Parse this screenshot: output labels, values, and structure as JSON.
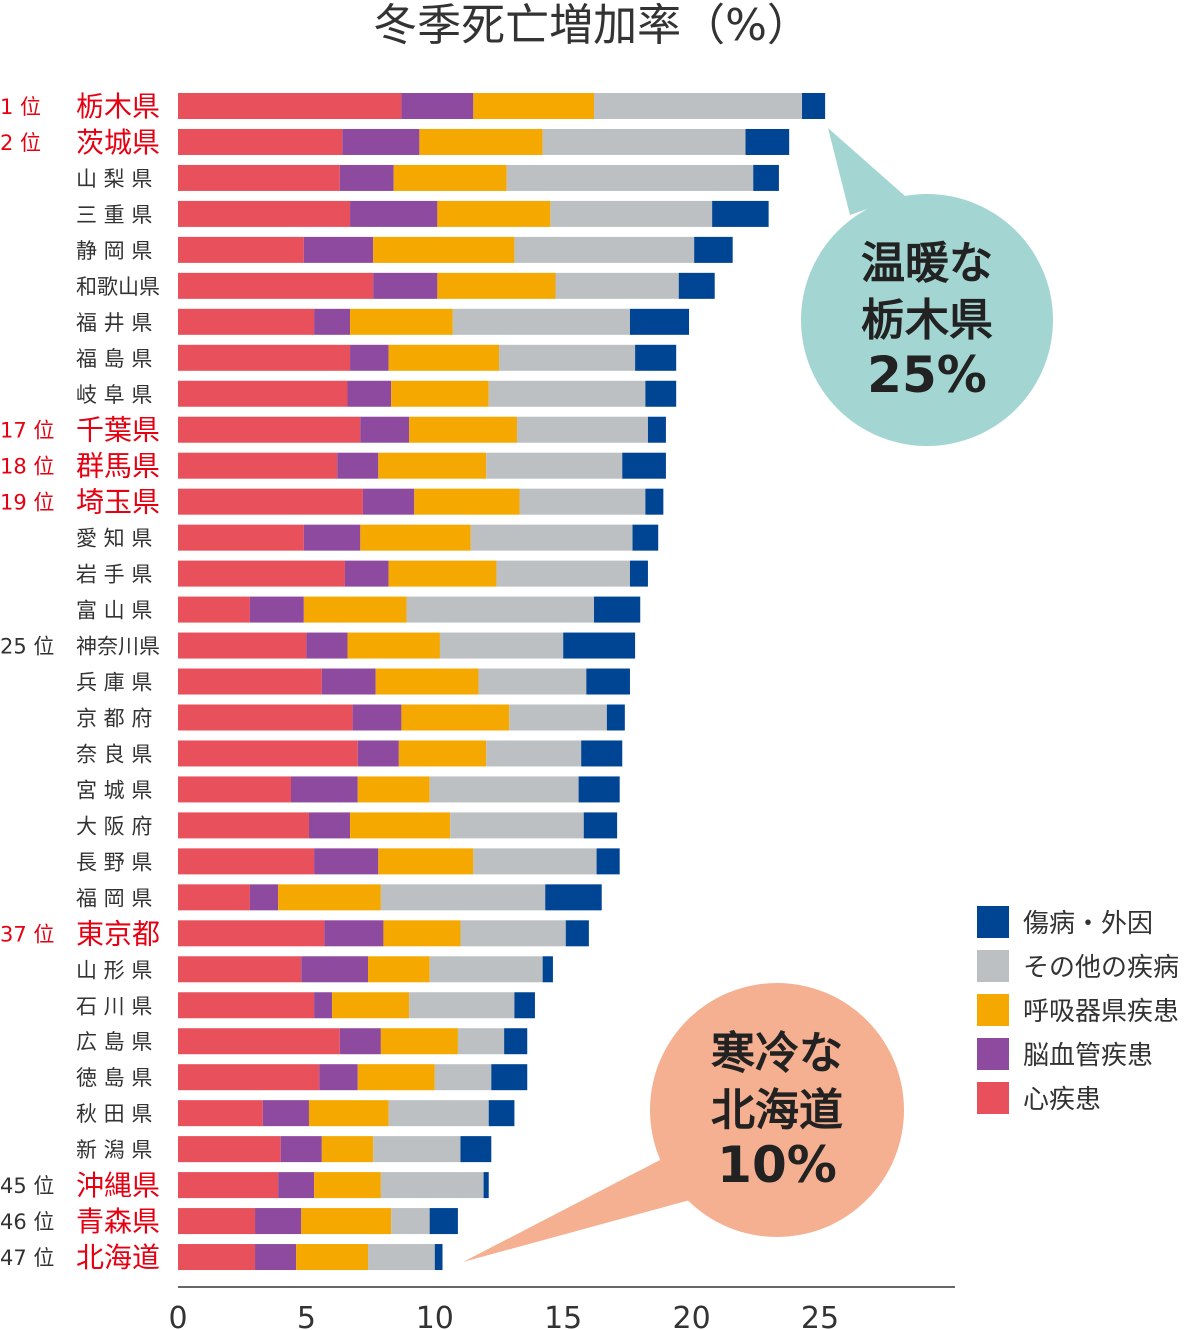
{
  "chart_data": {
    "type": "bar",
    "orientation": "horizontal",
    "stacked": true,
    "title": "冬季死亡増加率（%）",
    "xlim": [
      0,
      30
    ],
    "x_ticks": [
      "0",
      "5",
      "10",
      "15",
      "20",
      "25"
    ],
    "grid": false,
    "legend_position": "right",
    "categories": [
      "栃木県",
      "茨城県",
      "山 梨 県",
      "三 重 県",
      "静 岡 県",
      "和歌山県",
      "福 井 県",
      "福 島 県",
      "岐 阜 県",
      "千葉県",
      "群馬県",
      "埼玉県",
      "愛 知 県",
      "岩 手 県",
      "富 山 県",
      "神奈川県",
      "兵 庫 県",
      "京 都 府",
      "奈 良 県",
      "宮 城 県",
      "大 阪 府",
      "長 野 県",
      "福 岡 県",
      "東京都",
      "山 形 県",
      "石 川 県",
      "広 島 県",
      "徳 島 県",
      "秋 田 県",
      "新 潟 県",
      "沖縄県",
      "青森県",
      "北海道"
    ],
    "ranks": [
      "1 位",
      "2 位",
      "",
      "",
      "",
      "",
      "",
      "",
      "",
      "17 位",
      "18 位",
      "19 位",
      "",
      "",
      "",
      "25 位",
      "",
      "",
      "",
      "",
      "",
      "",
      "",
      "37 位",
      "",
      "",
      "",
      "",
      "",
      "",
      "45 位",
      "46 位",
      "47 位"
    ],
    "highlighted": [
      true,
      true,
      false,
      false,
      false,
      false,
      false,
      false,
      false,
      true,
      true,
      true,
      false,
      false,
      false,
      false,
      false,
      false,
      false,
      false,
      false,
      false,
      false,
      true,
      false,
      false,
      false,
      false,
      false,
      false,
      true,
      true,
      true
    ],
    "highlight_color": "#e60012",
    "series": [
      {
        "name": "心疾患",
        "color": "#e8505b",
        "values": [
          8.7,
          6.4,
          6.3,
          6.7,
          4.9,
          7.6,
          5.3,
          6.7,
          6.6,
          7.1,
          6.2,
          7.2,
          4.9,
          6.5,
          2.8,
          5.0,
          5.6,
          6.8,
          7.0,
          4.4,
          5.1,
          5.3,
          2.8,
          5.7,
          4.8,
          5.3,
          6.3,
          5.5,
          3.3,
          4.0,
          3.9,
          3.0,
          3.0
        ]
      },
      {
        "name": "脳血管疾患",
        "color": "#8e4a9e",
        "values": [
          2.8,
          3.0,
          2.1,
          3.4,
          2.7,
          2.5,
          1.4,
          1.5,
          1.7,
          1.9,
          1.6,
          2.0,
          2.2,
          1.7,
          2.1,
          1.6,
          2.1,
          1.9,
          1.6,
          2.6,
          1.6,
          2.5,
          1.1,
          2.3,
          2.6,
          0.7,
          1.6,
          1.5,
          1.8,
          1.6,
          1.4,
          1.8,
          1.6
        ]
      },
      {
        "name": "呼吸器県疾患",
        "color": "#f5a800",
        "values": [
          4.7,
          4.8,
          4.4,
          4.4,
          5.5,
          4.6,
          4.0,
          4.3,
          3.8,
          4.2,
          4.2,
          4.1,
          4.3,
          4.2,
          4.0,
          3.6,
          4.0,
          4.2,
          3.4,
          2.8,
          3.9,
          3.7,
          4.0,
          3.0,
          2.4,
          3.0,
          3.0,
          3.0,
          3.1,
          2.0,
          2.6,
          3.5,
          2.8
        ]
      },
      {
        "name": "その他の疾病",
        "color": "#bcc0c2",
        "values": [
          8.1,
          7.9,
          9.6,
          6.3,
          7.0,
          4.8,
          6.9,
          5.3,
          6.1,
          5.1,
          5.3,
          4.9,
          6.3,
          5.2,
          7.3,
          4.8,
          4.2,
          3.8,
          3.7,
          5.8,
          5.2,
          4.8,
          6.4,
          4.1,
          4.4,
          4.1,
          1.8,
          2.2,
          3.9,
          3.4,
          4.0,
          1.5,
          2.6
        ]
      },
      {
        "name": "傷病・外因",
        "color": "#004494",
        "values": [
          0.9,
          1.7,
          1.0,
          2.2,
          1.5,
          1.4,
          2.3,
          1.6,
          1.2,
          0.7,
          1.7,
          0.7,
          1.0,
          0.7,
          1.8,
          2.8,
          1.7,
          0.7,
          1.6,
          1.6,
          1.3,
          0.9,
          2.2,
          0.9,
          0.4,
          0.8,
          0.9,
          1.4,
          1.0,
          1.2,
          0.2,
          1.1,
          0.3
        ]
      }
    ],
    "legend_order": [
      "傷病・外因",
      "その他の疾病",
      "呼吸器県疾患",
      "脳血管疾患",
      "心疾患"
    ],
    "annotations": [
      {
        "lines": [
          "温暖な",
          "栃木県",
          "25%"
        ],
        "color": "#a3d6d3",
        "target": "栃木県"
      },
      {
        "lines": [
          "寒冷な",
          "北海道",
          "10%"
        ],
        "color": "#f4b090",
        "target": "北海道"
      }
    ]
  }
}
